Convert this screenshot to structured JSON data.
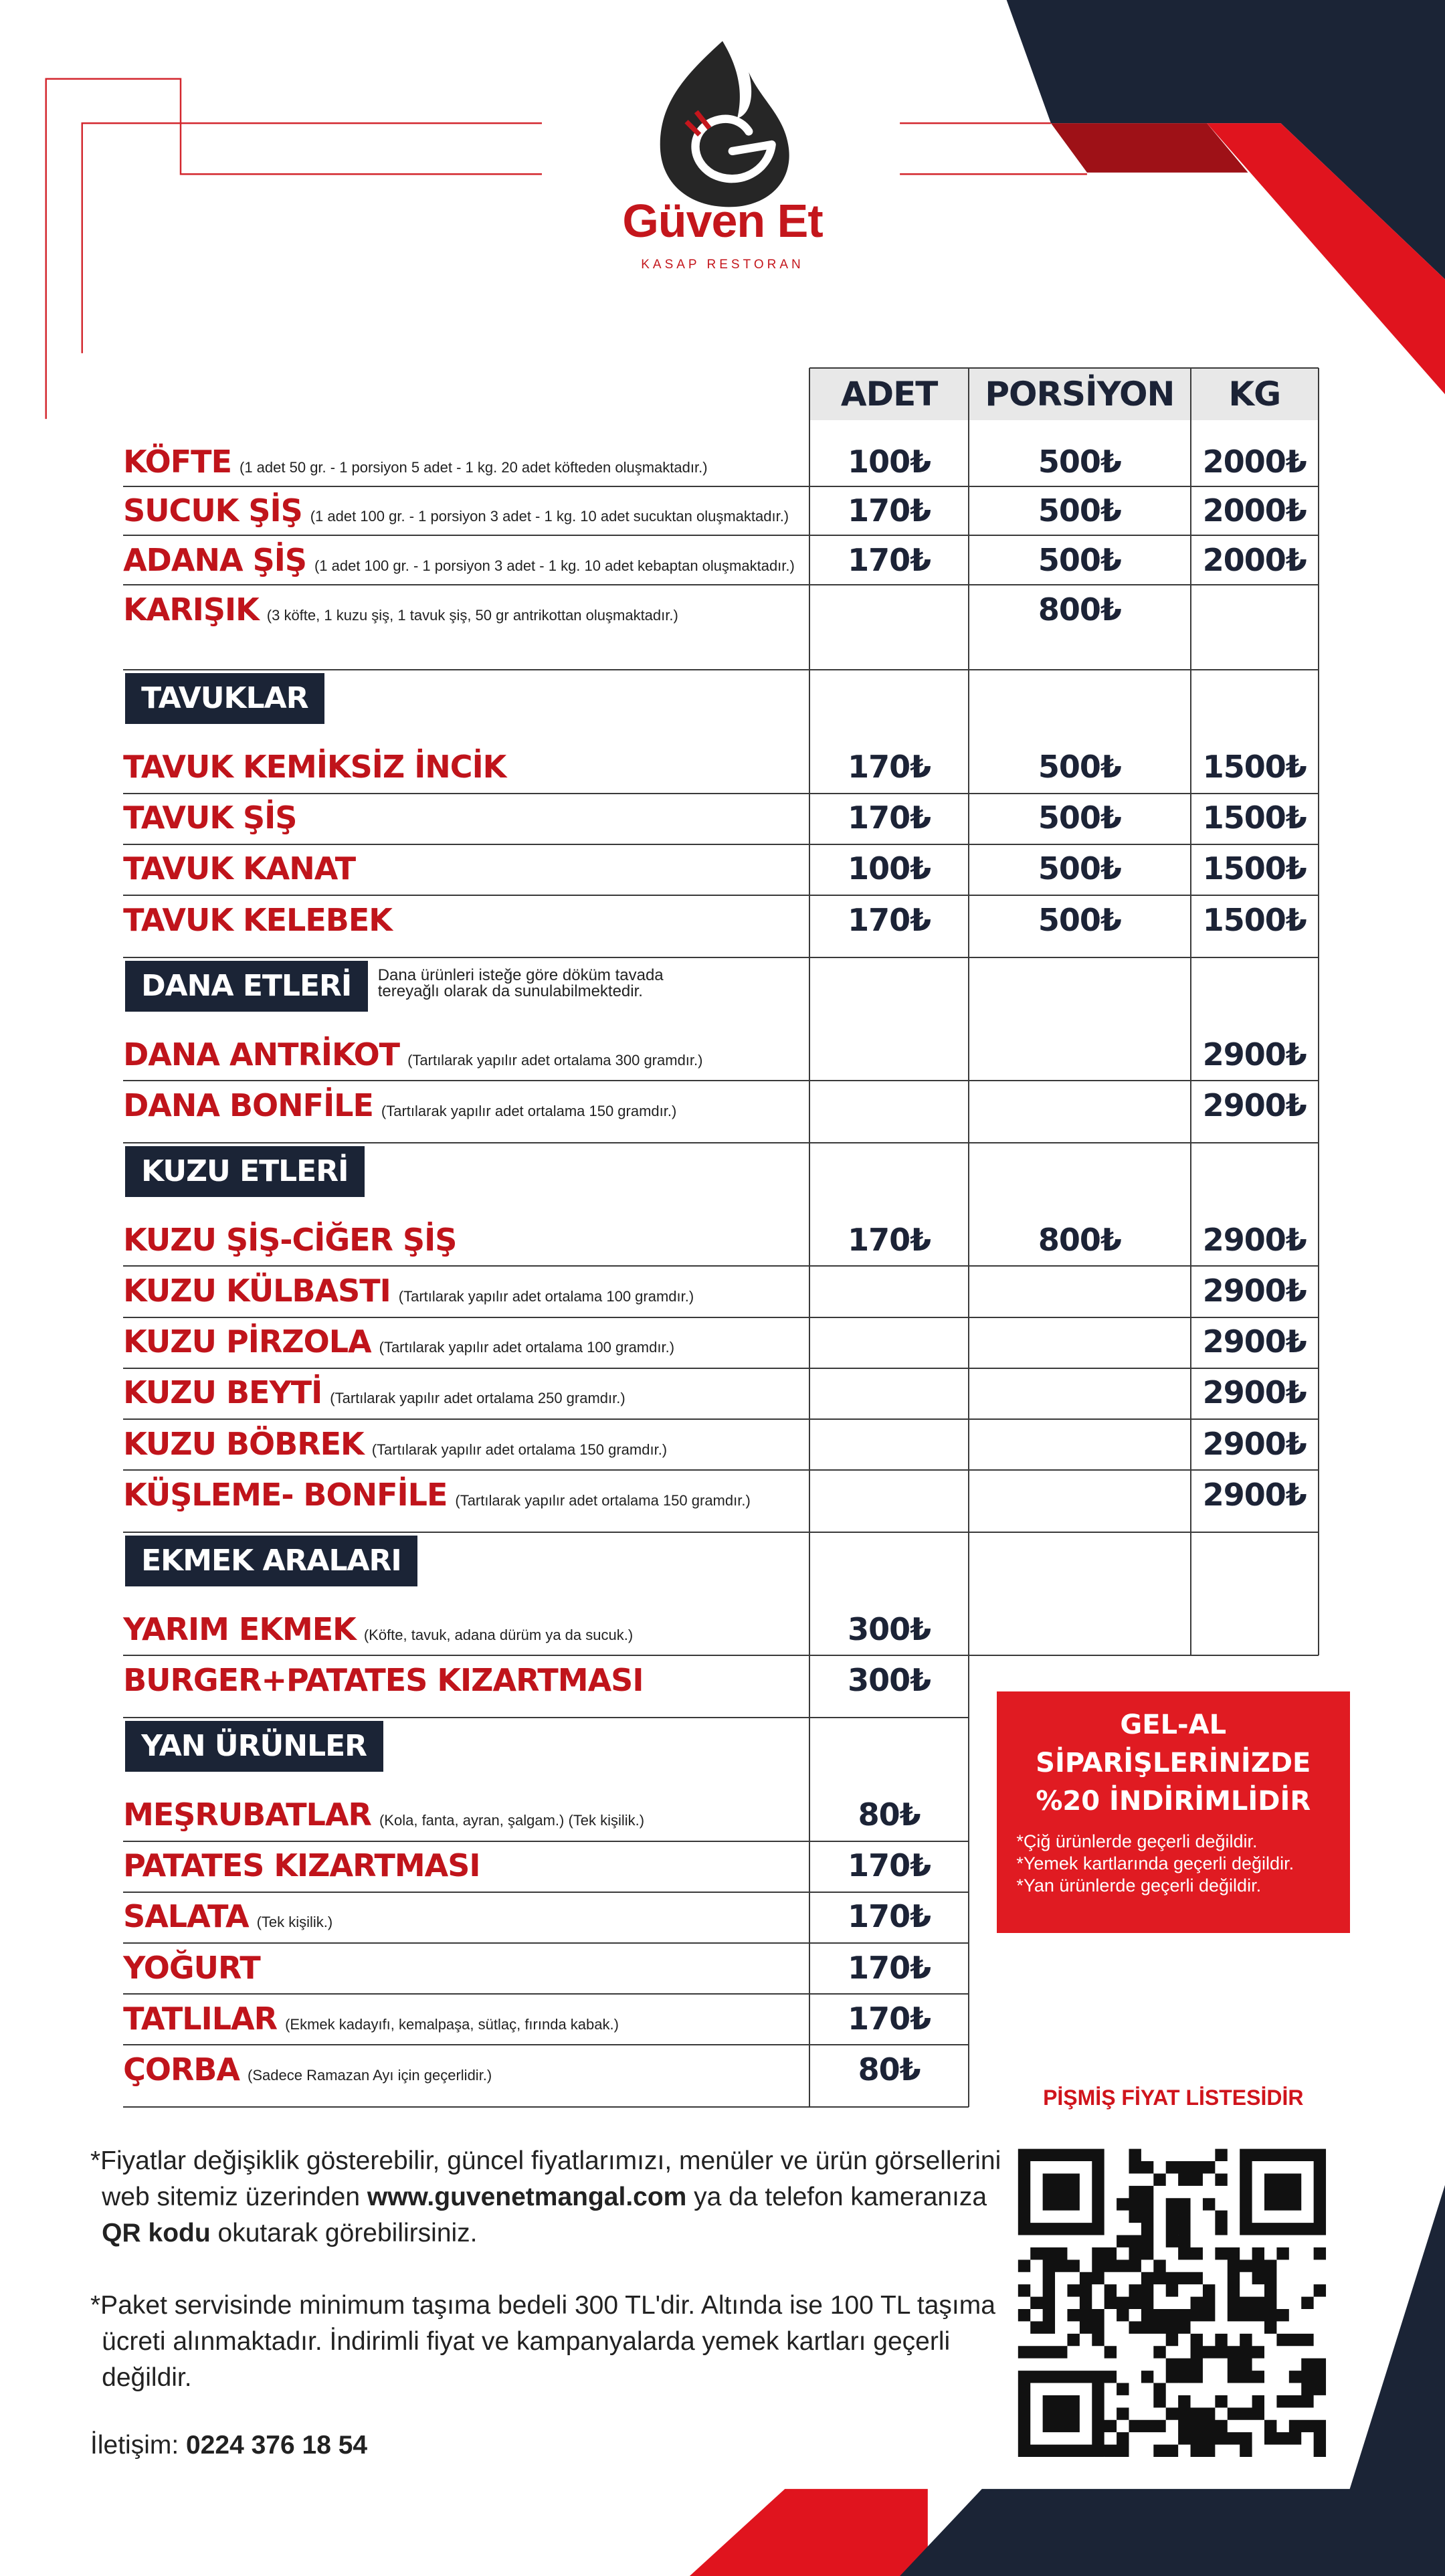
{
  "brand": {
    "name": "Güven Et",
    "tagline": "KASAP RESTORAN"
  },
  "table": {
    "columns": [
      "ADET",
      "PORSİYON",
      "KG"
    ],
    "items": [
      {
        "name": "KÖFTE",
        "note": "(1 adet 50 gr. - 1 porsiyon 5 adet - 1 kg. 20 adet köfteden oluşmaktadır.)",
        "prices": [
          "100₺",
          "500₺",
          "2000₺"
        ]
      },
      {
        "name": "SUCUK ŞİŞ",
        "note": "(1 adet 100 gr. - 1 porsiyon 3 adet - 1 kg. 10 adet sucuktan oluşmaktadır.)",
        "prices": [
          "170₺",
          "500₺",
          "2000₺"
        ]
      },
      {
        "name": "ADANA ŞİŞ",
        "note": "(1 adet 100 gr. - 1 porsiyon 3 adet - 1 kg. 10 adet kebaptan oluşmaktadır.)",
        "prices": [
          "170₺",
          "500₺",
          "2000₺"
        ]
      },
      {
        "name": "KARIŞIK",
        "note": "(3 köfte, 1 kuzu şiş, 1 tavuk şiş, 50 gr antrikottan oluşmaktadır.)",
        "prices": [
          null,
          "800₺",
          null
        ]
      }
    ],
    "sections": [
      {
        "title": "TAVUKLAR",
        "items": [
          {
            "name": "TAVUK KEMİKSİZ İNCİK",
            "prices": [
              "170₺",
              "500₺",
              "1500₺"
            ]
          },
          {
            "name": "TAVUK ŞİŞ",
            "prices": [
              "170₺",
              "500₺",
              "1500₺"
            ]
          },
          {
            "name": "TAVUK KANAT",
            "prices": [
              "100₺",
              "500₺",
              "1500₺"
            ]
          },
          {
            "name": "TAVUK KELEBEK",
            "prices": [
              "170₺",
              "500₺",
              "1500₺"
            ]
          }
        ]
      },
      {
        "title": "DANA ETLERİ",
        "note": "Dana ürünleri isteğe göre döküm tavada tereyağlı olarak da sunulabilmektedir.",
        "items": [
          {
            "name": "DANA ANTRİKOT",
            "note": "(Tartılarak yapılır adet ortalama 300 gramdır.)",
            "prices": [
              null,
              null,
              "2900₺"
            ]
          },
          {
            "name": "DANA BONFİLE",
            "note": "(Tartılarak yapılır adet ortalama 150 gramdır.)",
            "prices": [
              null,
              null,
              "2900₺"
            ]
          }
        ]
      },
      {
        "title": "KUZU ETLERİ",
        "items": [
          {
            "name": "KUZU ŞİŞ-CİĞER ŞİŞ",
            "prices": [
              "170₺",
              "800₺",
              "2900₺"
            ]
          },
          {
            "name": "KUZU KÜLBASTI",
            "note": "(Tartılarak yapılır adet ortalama 100 gramdır.)",
            "prices": [
              null,
              null,
              "2900₺"
            ]
          },
          {
            "name": "KUZU PİRZOLA",
            "note": "(Tartılarak yapılır adet ortalama 100 gramdır.)",
            "prices": [
              null,
              null,
              "2900₺"
            ]
          },
          {
            "name": "KUZU BEYTİ",
            "note": "(Tartılarak yapılır adet ortalama 250 gramdır.)",
            "prices": [
              null,
              null,
              "2900₺"
            ]
          },
          {
            "name": "KUZU BÖBREK",
            "note": "(Tartılarak yapılır adet ortalama 150 gramdır.)",
            "prices": [
              null,
              null,
              "2900₺"
            ]
          },
          {
            "name": "KÜŞLEME- BONFİLE",
            "note": "(Tartılarak yapılır adet ortalama 150 gramdır.)",
            "prices": [
              null,
              null,
              "2900₺"
            ]
          }
        ]
      },
      {
        "title": "EKMEK ARALARI",
        "items": [
          {
            "name": "YARIM EKMEK",
            "note": "(Köfte, tavuk, adana dürüm ya da sucuk.)",
            "prices": [
              "300₺",
              null,
              null
            ]
          },
          {
            "name": "BURGER+PATATES KIZARTMASI",
            "prices": [
              "300₺",
              null,
              null
            ]
          }
        ]
      },
      {
        "title": "YAN ÜRÜNLER",
        "items": [
          {
            "name": "MEŞRUBATLAR",
            "note": "(Kola, fanta, ayran, şalgam.)  (Tek kişilik.)",
            "prices": [
              "80₺",
              null,
              null
            ]
          },
          {
            "name": "PATATES KIZARTMASI",
            "prices": [
              "170₺",
              null,
              null
            ]
          },
          {
            "name": "SALATA",
            "note": "(Tek kişilik.)",
            "prices": [
              "170₺",
              null,
              null
            ]
          },
          {
            "name": "YOĞURT",
            "prices": [
              "170₺",
              null,
              null
            ]
          },
          {
            "name": "TATLILAR",
            "note": "(Ekmek kadayıfı, kemalpaşa, sütlaç, fırında kabak.)",
            "prices": [
              "170₺",
              null,
              null
            ]
          },
          {
            "name": "ÇORBA",
            "note": "(Sadece Ramazan Ayı için geçerlidir.)",
            "prices": [
              "80₺",
              null,
              null
            ]
          }
        ]
      }
    ]
  },
  "promo": {
    "title": "GEL-AL SİPARİŞLERİNİZDE %20 İNDİRİMLİDİR",
    "notes": [
      "*Çiğ ürünlerde geçerli değildir.",
      "*Yemek kartlarında geçerli değildir.",
      "*Yan ürünlerde geçerli değildir."
    ]
  },
  "qr_caption": "PİŞMİŞ FİYAT LİSTESİDİR",
  "footer": {
    "paragraphs": [
      [
        {
          "text": "*Fiyatlar değişiklik gösterebilir, güncel fiyatlarımızı, menüler ve ürün görsellerini web sitemiz üzerinden "
        },
        {
          "text": "www.guvenetmangal.com",
          "bold": true
        },
        {
          "text": " ya da telefon kameranıza "
        },
        {
          "text": "QR kodu",
          "bold": true
        },
        {
          "text": " okutarak görebilirsiniz."
        }
      ],
      [
        {
          "text": "*Paket servisinde minimum taşıma bedeli 300 TL'dir. Altında ise 100 TL taşıma ücreti alınmaktadır. İndirimli fiyat ve kampanyalarda yemek kartları geçerli değildir."
        }
      ],
      [
        {
          "text": "İletişim: "
        },
        {
          "text": "0224 376 18 54",
          "bold": true
        }
      ]
    ]
  }
}
